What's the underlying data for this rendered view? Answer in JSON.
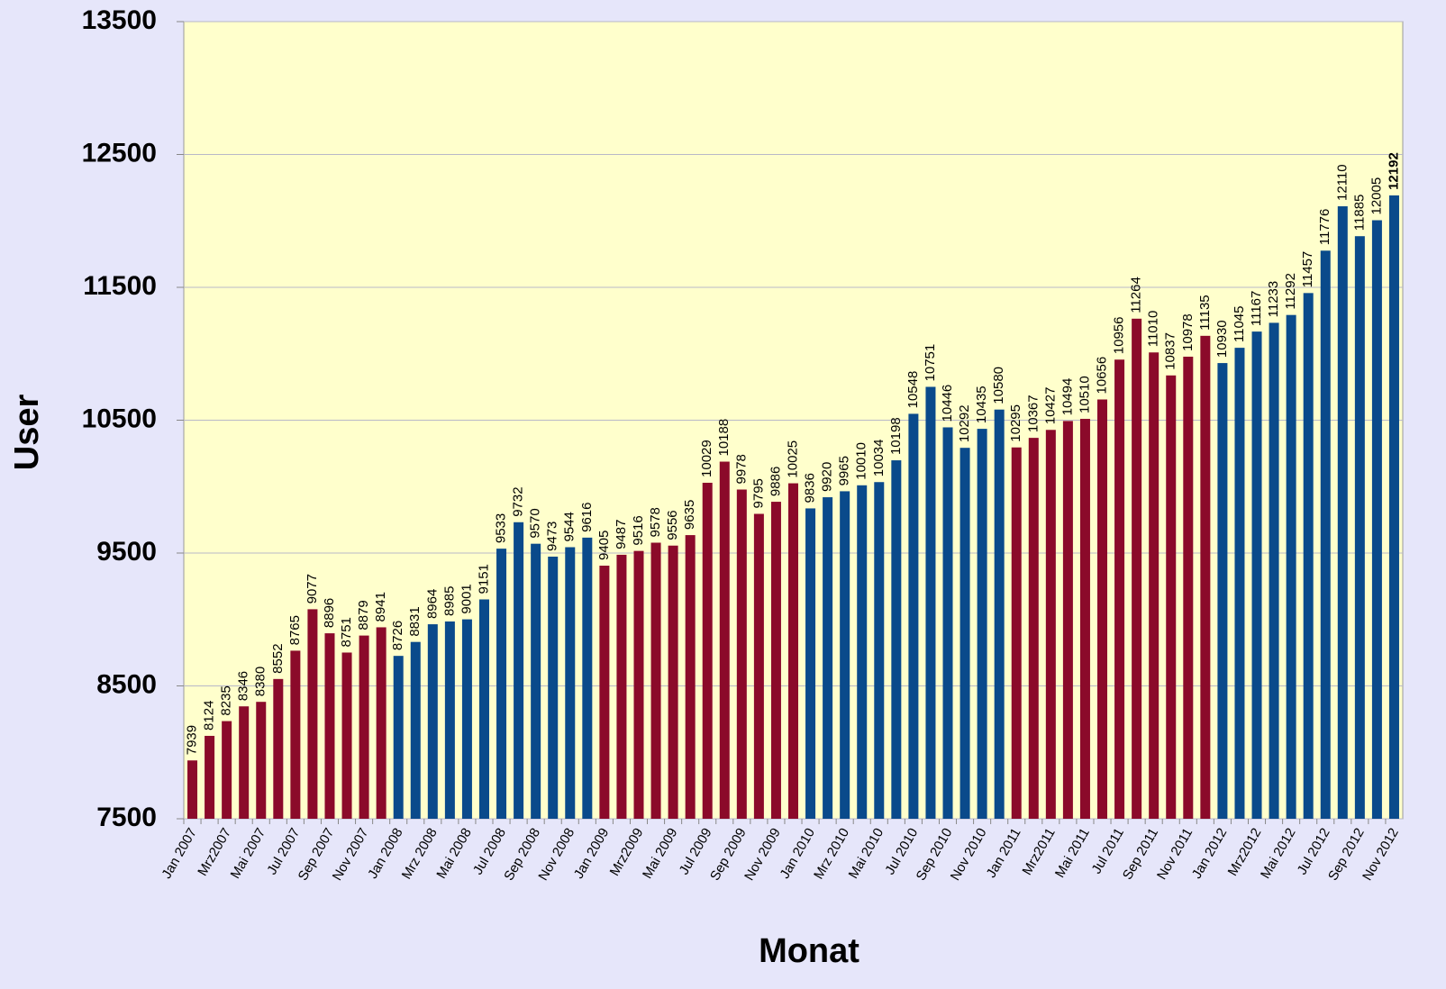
{
  "chart_data": {
    "type": "bar",
    "x_label": "Monat",
    "y_label": "User",
    "categories": [
      "Jan 2007",
      null,
      "Mrz2007",
      null,
      "Mai 2007",
      null,
      "Jul 2007",
      null,
      "Sep 2007",
      null,
      "Nov 2007",
      null,
      "Jan 2008",
      null,
      "Mrz 2008",
      null,
      "Mai 2008",
      null,
      "Jul 2008",
      null,
      "Sep 2008",
      null,
      "Nov 2008",
      null,
      "Jan 2009",
      null,
      "Mrz2009",
      null,
      "Mai 2009",
      null,
      "Jul 2009",
      null,
      "Sep 2009",
      null,
      "Nov 2009",
      null,
      "Jan 2010",
      null,
      "Mrz 2010",
      null,
      "Mai 2010",
      null,
      "Jul 2010",
      null,
      "Sep 2010",
      null,
      "Nov 2010",
      null,
      "Jan 2011",
      null,
      "Mrz2011",
      null,
      "Mai 2011",
      null,
      "Jul 2011",
      null,
      "Sep 2011",
      null,
      "Nov 2011",
      null,
      "Jan 2012",
      null,
      "Mrz2012",
      null,
      "Mai 2012",
      null,
      "Jul 2012",
      null,
      "Sep 2012",
      null,
      "Nov 2012"
    ],
    "values": [
      7939,
      8124,
      8235,
      8346,
      8380,
      8552,
      8765,
      9077,
      8896,
      8751,
      8879,
      8941,
      8726,
      8831,
      8964,
      8985,
      9001,
      9151,
      9533,
      9732,
      9570,
      9473,
      9544,
      9616,
      9405,
      9487,
      9516,
      9578,
      9556,
      9635,
      10029,
      10188,
      9978,
      9795,
      9886,
      10025,
      9836,
      9920,
      9965,
      10010,
      10034,
      10198,
      10548,
      10751,
      10446,
      10292,
      10435,
      10580,
      10295,
      10367,
      10427,
      10494,
      10510,
      10656,
      10956,
      11264,
      11010,
      10837,
      10978,
      11135,
      10930,
      11045,
      11167,
      11233,
      11292,
      11457,
      11776,
      12110,
      11885,
      12005,
      12192
    ],
    "colors": [
      "#8b0a2a",
      "#8b0a2a",
      "#8b0a2a",
      "#8b0a2a",
      "#8b0a2a",
      "#8b0a2a",
      "#8b0a2a",
      "#8b0a2a",
      "#8b0a2a",
      "#8b0a2a",
      "#8b0a2a",
      "#8b0a2a",
      "#0a4a8b",
      "#0a4a8b",
      "#0a4a8b",
      "#0a4a8b",
      "#0a4a8b",
      "#0a4a8b",
      "#0a4a8b",
      "#0a4a8b",
      "#0a4a8b",
      "#0a4a8b",
      "#0a4a8b",
      "#0a4a8b",
      "#8b0a2a",
      "#8b0a2a",
      "#8b0a2a",
      "#8b0a2a",
      "#8b0a2a",
      "#8b0a2a",
      "#8b0a2a",
      "#8b0a2a",
      "#8b0a2a",
      "#8b0a2a",
      "#8b0a2a",
      "#8b0a2a",
      "#0a4a8b",
      "#0a4a8b",
      "#0a4a8b",
      "#0a4a8b",
      "#0a4a8b",
      "#0a4a8b",
      "#0a4a8b",
      "#0a4a8b",
      "#0a4a8b",
      "#0a4a8b",
      "#0a4a8b",
      "#0a4a8b",
      "#8b0a2a",
      "#8b0a2a",
      "#8b0a2a",
      "#8b0a2a",
      "#8b0a2a",
      "#8b0a2a",
      "#8b0a2a",
      "#8b0a2a",
      "#8b0a2a",
      "#8b0a2a",
      "#8b0a2a",
      "#8b0a2a",
      "#0a4a8b",
      "#0a4a8b",
      "#0a4a8b",
      "#0a4a8b",
      "#0a4a8b",
      "#0a4a8b",
      "#0a4a8b",
      "#0a4a8b",
      "#0a4a8b",
      "#0a4a8b",
      "#0a4a8b"
    ],
    "highlight_last_label": true,
    "ylim": [
      7500,
      13500
    ],
    "yticks": [
      7500,
      8500,
      9500,
      10500,
      11500,
      12500,
      13500
    ],
    "grid": true
  }
}
